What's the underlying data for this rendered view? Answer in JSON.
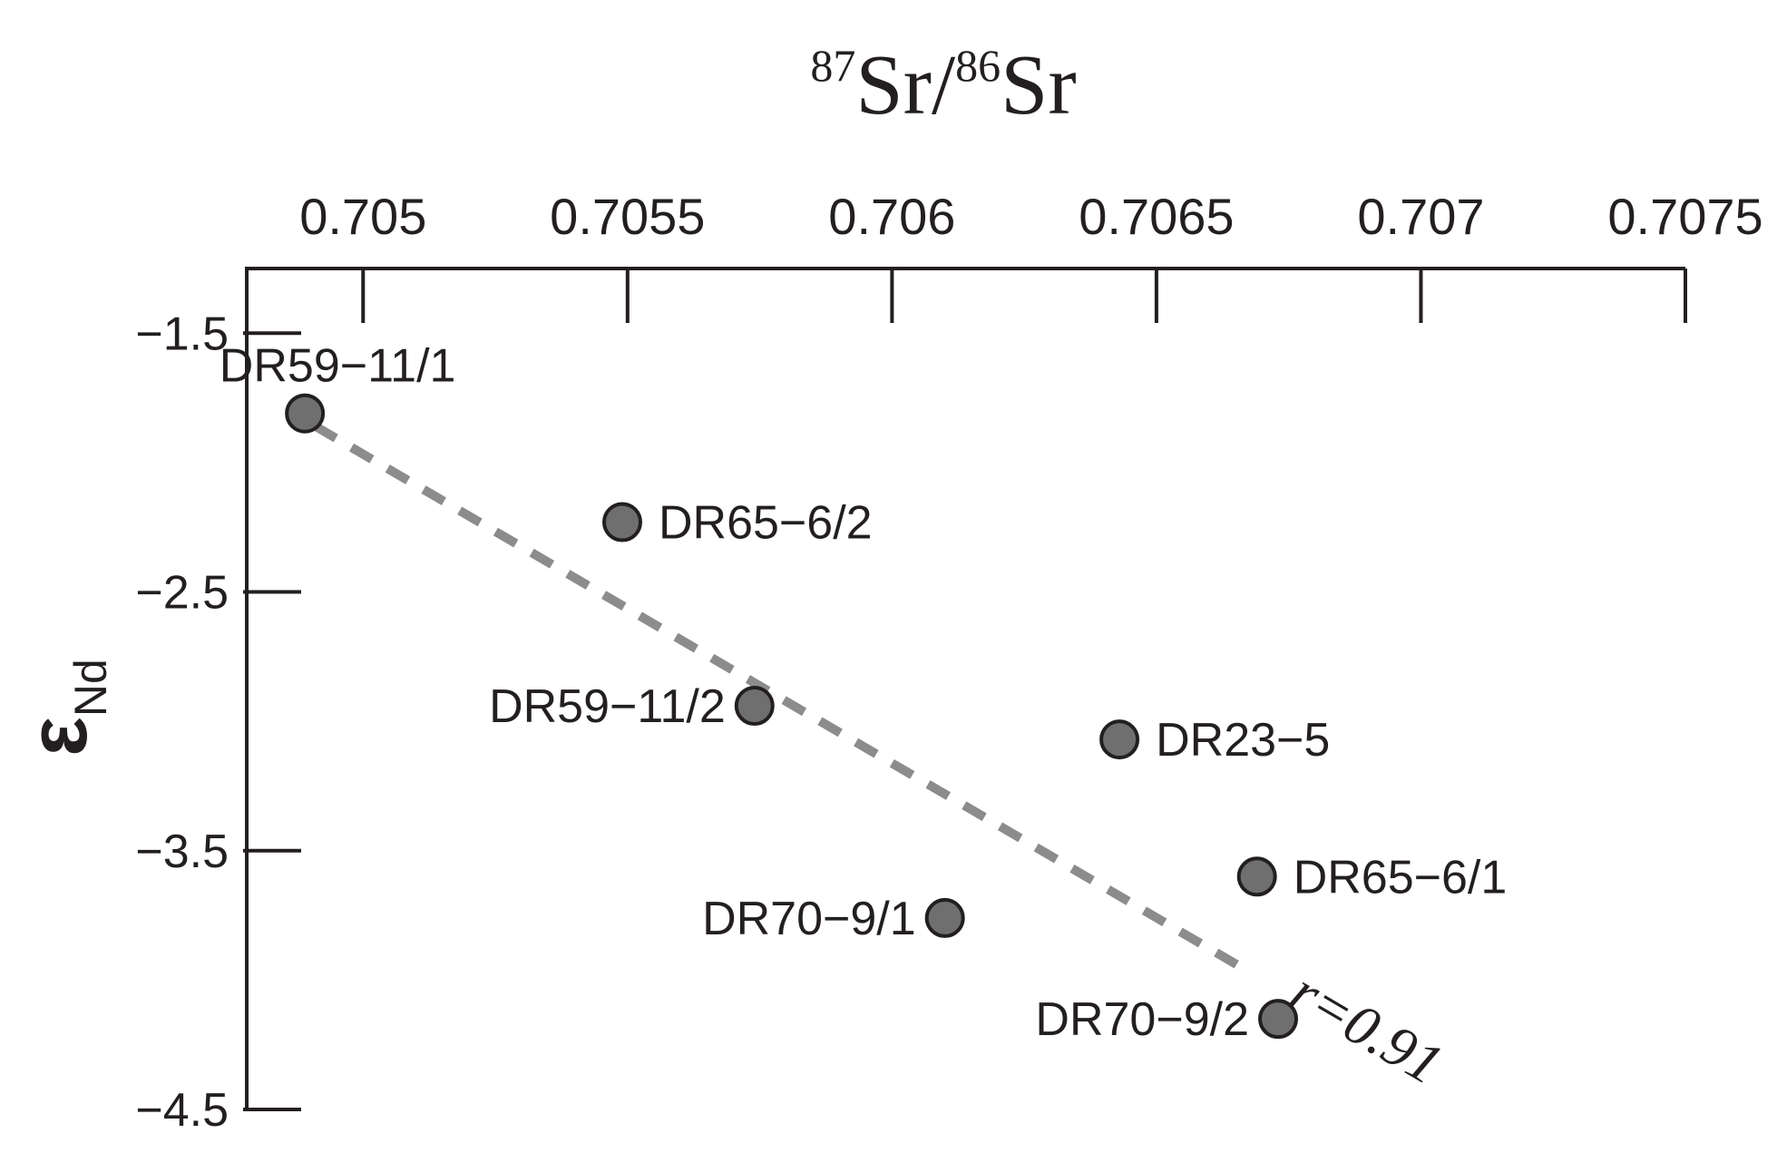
{
  "chart_data": {
    "type": "scatter",
    "title": "",
    "xlabel": {
      "sup1": "87",
      "main1": "Sr",
      "slash": "/",
      "sup2": "86",
      "main2": "Sr"
    },
    "ylabel": {
      "main": "ε",
      "sub": "Nd"
    },
    "xlim": [
      0.70478,
      0.7075
    ],
    "ylim": [
      -4.5,
      -1.25
    ],
    "x_ticks": [
      {
        "value": 0.705,
        "label": "0.705"
      },
      {
        "value": 0.7055,
        "label": "0.7055"
      },
      {
        "value": 0.706,
        "label": "0.706"
      },
      {
        "value": 0.7065,
        "label": "0.7065"
      },
      {
        "value": 0.707,
        "label": "0.707"
      },
      {
        "value": 0.7075,
        "label": "0.7075"
      }
    ],
    "y_ticks": [
      {
        "value": -1.5,
        "label": "−1.5"
      },
      {
        "value": -2.5,
        "label": "−2.5"
      },
      {
        "value": -3.5,
        "label": "−3.5"
      },
      {
        "value": -4.5,
        "label": "−4.5"
      }
    ],
    "points": [
      {
        "name": "DR59−11/1",
        "x": 0.70489,
        "y": -1.81,
        "label_pos": "above"
      },
      {
        "name": "DR65−6/2",
        "x": 0.70549,
        "y": -2.23,
        "label_pos": "right"
      },
      {
        "name": "DR59−11/2",
        "x": 0.70574,
        "y": -2.94,
        "label_pos": "left"
      },
      {
        "name": "DR23−5",
        "x": 0.70643,
        "y": -3.07,
        "label_pos": "right"
      },
      {
        "name": "DR65−6/1",
        "x": 0.70669,
        "y": -3.6,
        "label_pos": "right"
      },
      {
        "name": "DR70−9/1",
        "x": 0.7061,
        "y": -3.76,
        "label_pos": "left"
      },
      {
        "name": "DR70−9/2",
        "x": 0.70673,
        "y": -4.15,
        "label_pos": "left"
      }
    ],
    "trendline": {
      "x1": 0.70491,
      "y1": -1.86,
      "x2": 0.70666,
      "y2": -3.95,
      "label": "r=0.91",
      "color": "#8c8c8c"
    },
    "marker_color": "#6f6f6f"
  }
}
